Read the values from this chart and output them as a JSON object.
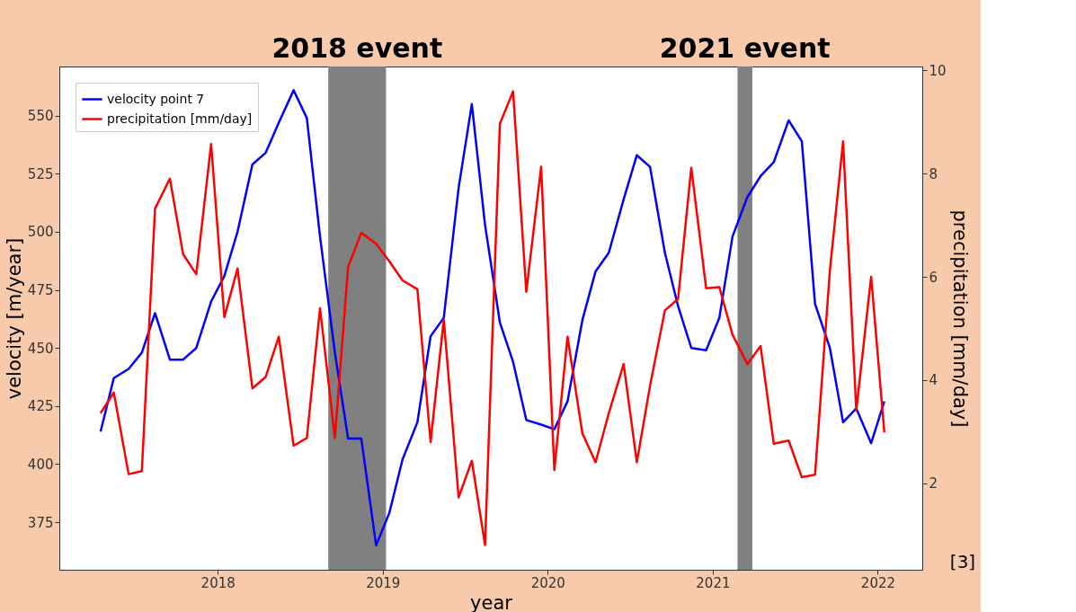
{
  "chart_data": {
    "type": "line",
    "xlabel": "year",
    "ylabel": "velocity [m/year]",
    "y2label": "precipitation [mm/day]",
    "x": [
      2017.29,
      2017.37,
      2017.46,
      2017.54,
      2017.62,
      2017.71,
      2017.79,
      2017.87,
      2017.96,
      2018.04,
      2018.12,
      2018.21,
      2018.29,
      2018.37,
      2018.46,
      2018.54,
      2018.62,
      2018.71,
      2018.79,
      2018.87,
      2018.96,
      2019.04,
      2019.12,
      2019.21,
      2019.29,
      2019.37,
      2019.46,
      2019.54,
      2019.62,
      2019.71,
      2019.79,
      2019.87,
      2019.96,
      2020.04,
      2020.12,
      2020.21,
      2020.29,
      2020.37,
      2020.46,
      2020.54,
      2020.62,
      2020.71,
      2020.79,
      2020.87,
      2020.96,
      2021.04,
      2021.12,
      2021.21,
      2021.29,
      2021.37,
      2021.46,
      2021.54,
      2021.62,
      2021.71,
      2021.79,
      2021.87,
      2021.96,
      2022.04
    ],
    "series": [
      {
        "name": "velocity point 7",
        "color": "#0000ff",
        "values": [
          414,
          437,
          441,
          448,
          465,
          445,
          445,
          450,
          470,
          481,
          500,
          529,
          534,
          547,
          561,
          549,
          498,
          448,
          411,
          411,
          365,
          379,
          402,
          418,
          455,
          463,
          519,
          555,
          503,
          461,
          444,
          419,
          417,
          415,
          427,
          462,
          483,
          491,
          514,
          533,
          528,
          491,
          468,
          450,
          449,
          463,
          498,
          515,
          524,
          530,
          548,
          539,
          469,
          450,
          418,
          424,
          409,
          427
        ]
      },
      {
        "name": "precipitation [mm/day]",
        "color": "#ff0000",
        "axis": "y2",
        "values": [
          3.36,
          3.76,
          2.18,
          2.24,
          7.32,
          7.9,
          6.44,
          6.05,
          8.57,
          5.22,
          6.16,
          3.84,
          4.06,
          4.84,
          2.73,
          2.88,
          5.39,
          2.88,
          6.19,
          6.85,
          6.64,
          6.3,
          5.93,
          5.76,
          2.8,
          5.17,
          1.73,
          2.44,
          0.81,
          8.96,
          9.59,
          5.71,
          8.13,
          2.26,
          4.84,
          2.97,
          2.41,
          3.36,
          4.31,
          2.41,
          3.89,
          5.35,
          5.57,
          8.11,
          5.78,
          5.8,
          4.88,
          4.31,
          4.66,
          2.77,
          2.83,
          2.12,
          2.17,
          6.12,
          8.62,
          3.41,
          6.0,
          2.99
        ]
      }
    ],
    "xlim": [
      2017.04,
      2022.27
    ],
    "xticks": [
      2018,
      2019,
      2020,
      2021,
      2022
    ],
    "ylim": [
      354.5,
      571.2
    ],
    "yticks": [
      375,
      400,
      425,
      450,
      475,
      500,
      525,
      550
    ],
    "y2lim": [
      0.33,
      10.07
    ],
    "y2ticks": [
      2,
      4,
      6,
      8,
      10
    ],
    "bands": [
      {
        "axis": "x",
        "from": 2018.67,
        "to": 2019.02,
        "label": "2018 event",
        "color": "#808080"
      },
      {
        "axis": "x",
        "from": 2021.15,
        "to": 2021.24,
        "label": "2021 event",
        "color": "#808080"
      }
    ],
    "annotations": [
      "[3]"
    ],
    "legend": "top left",
    "grid": false,
    "line_style": "solid",
    "marker": "none"
  }
}
